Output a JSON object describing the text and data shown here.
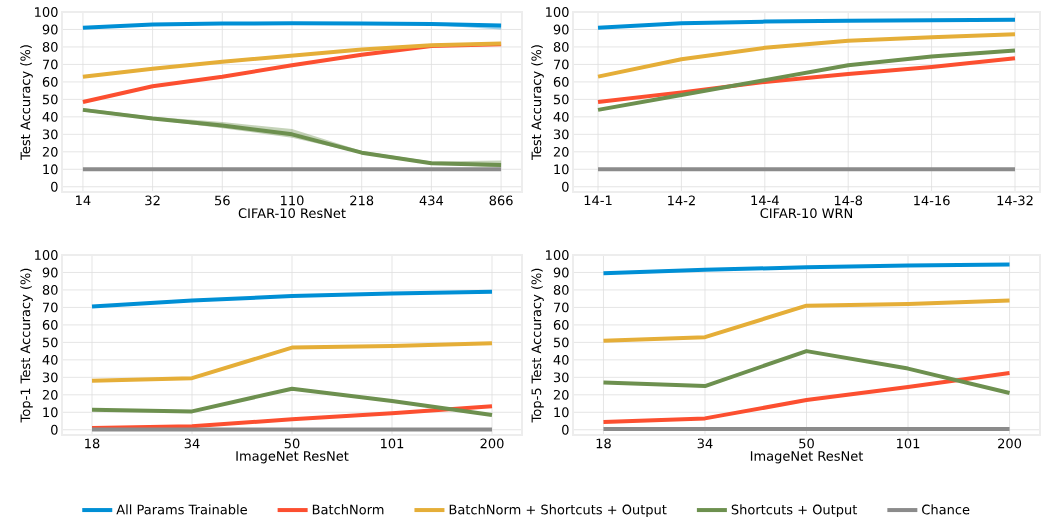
{
  "chart_data": [
    {
      "type": "line",
      "xlabel": "CIFAR-10 ResNet",
      "ylabel": "Test Accuracy (%)",
      "categories": [
        "14",
        "32",
        "56",
        "110",
        "218",
        "434",
        "866"
      ],
      "ylim": [
        -3,
        100
      ],
      "yticks": [
        0,
        10,
        20,
        30,
        40,
        50,
        60,
        70,
        80,
        90,
        100
      ],
      "grid": true,
      "legend": "bottom",
      "series": [
        {
          "name": "All Params Trainable",
          "color": "#008fd5",
          "values": [
            91,
            92.8,
            93.4,
            93.5,
            93.4,
            93.1,
            92.3
          ],
          "lower": [
            90.5,
            92.3,
            93,
            93.1,
            93,
            92.6,
            90
          ],
          "upper": [
            91.5,
            93.2,
            93.8,
            93.9,
            93.8,
            93.5,
            93
          ]
        },
        {
          "name": "BatchNorm",
          "color": "#fc4f30",
          "values": [
            48.5,
            57.5,
            63,
            69.5,
            75.5,
            80.5,
            81.5
          ]
        },
        {
          "name": "BatchNorm + Shortcuts + Output",
          "color": "#e5ae38",
          "values": [
            63,
            67.5,
            71.5,
            75,
            78.5,
            81,
            82
          ]
        },
        {
          "name": "Shortcuts + Output",
          "color": "#6d904f",
          "values": [
            44,
            39,
            35,
            30,
            19.5,
            13.5,
            12.5
          ],
          "lower": [
            43,
            38.5,
            33.5,
            28,
            19,
            13,
            11
          ],
          "upper": [
            45,
            40,
            37,
            33,
            20.5,
            14.5,
            15
          ]
        },
        {
          "name": "Chance",
          "color": "#8b8b8b",
          "values": [
            10,
            10,
            10,
            10,
            10,
            10,
            10
          ]
        }
      ]
    },
    {
      "type": "line",
      "xlabel": "CIFAR-10 WRN",
      "ylabel": "Test Accuracy (%)",
      "categories": [
        "14-1",
        "14-2",
        "14-4",
        "14-8",
        "14-16",
        "14-32"
      ],
      "ylim": [
        -3,
        100
      ],
      "yticks": [
        0,
        10,
        20,
        30,
        40,
        50,
        60,
        70,
        80,
        90,
        100
      ],
      "grid": true,
      "series": [
        {
          "color": "#008fd5",
          "values": [
            91,
            93.5,
            94.5,
            95,
            95.3,
            95.5
          ]
        },
        {
          "color": "#fc4f30",
          "values": [
            48.5,
            54,
            60,
            64.5,
            68.5,
            73.5
          ]
        },
        {
          "color": "#e5ae38",
          "values": [
            63,
            73,
            79.5,
            83.5,
            85.5,
            87.3
          ]
        },
        {
          "color": "#6d904f",
          "values": [
            44,
            52.5,
            61,
            69.5,
            74.5,
            78
          ]
        },
        {
          "color": "#8b8b8b",
          "values": [
            10,
            10,
            10,
            10,
            10,
            10
          ]
        }
      ]
    },
    {
      "type": "line",
      "xlabel": "ImageNet ResNet",
      "ylabel": "Top-1 Test Accuracy (%)",
      "categories": [
        "18",
        "34",
        "50",
        "101",
        "200"
      ],
      "ylim": [
        -3,
        100
      ],
      "yticks": [
        0,
        10,
        20,
        30,
        40,
        50,
        60,
        70,
        80,
        90,
        100
      ],
      "grid": true,
      "series": [
        {
          "color": "#008fd5",
          "values": [
            70.5,
            74,
            76.5,
            78,
            79
          ]
        },
        {
          "color": "#fc4f30",
          "values": [
            1,
            2,
            6,
            9.5,
            13.5
          ]
        },
        {
          "color": "#e5ae38",
          "values": [
            28,
            29.5,
            47,
            48,
            49.5
          ]
        },
        {
          "color": "#6d904f",
          "values": [
            11.5,
            10.5,
            23.5,
            16.5,
            8.5
          ]
        },
        {
          "color": "#8b8b8b",
          "values": [
            0.1,
            0.1,
            0.1,
            0.1,
            0.1
          ]
        }
      ]
    },
    {
      "type": "line",
      "xlabel": "ImageNet ResNet",
      "ylabel": "Top-5 Test Accuracy (%)",
      "categories": [
        "18",
        "34",
        "50",
        "101",
        "200"
      ],
      "ylim": [
        -3,
        100
      ],
      "yticks": [
        0,
        10,
        20,
        30,
        40,
        50,
        60,
        70,
        80,
        90,
        100
      ],
      "grid": true,
      "series": [
        {
          "color": "#008fd5",
          "values": [
            89.5,
            91.5,
            93,
            94,
            94.5
          ]
        },
        {
          "color": "#fc4f30",
          "values": [
            4.5,
            6.5,
            17,
            24.5,
            32.5
          ]
        },
        {
          "color": "#e5ae38",
          "values": [
            51,
            53,
            71,
            72,
            74
          ]
        },
        {
          "color": "#6d904f",
          "values": [
            27,
            25,
            45,
            35,
            21
          ]
        },
        {
          "color": "#8b8b8b",
          "values": [
            0.5,
            0.5,
            0.5,
            0.5,
            0.5
          ]
        }
      ]
    }
  ]
}
